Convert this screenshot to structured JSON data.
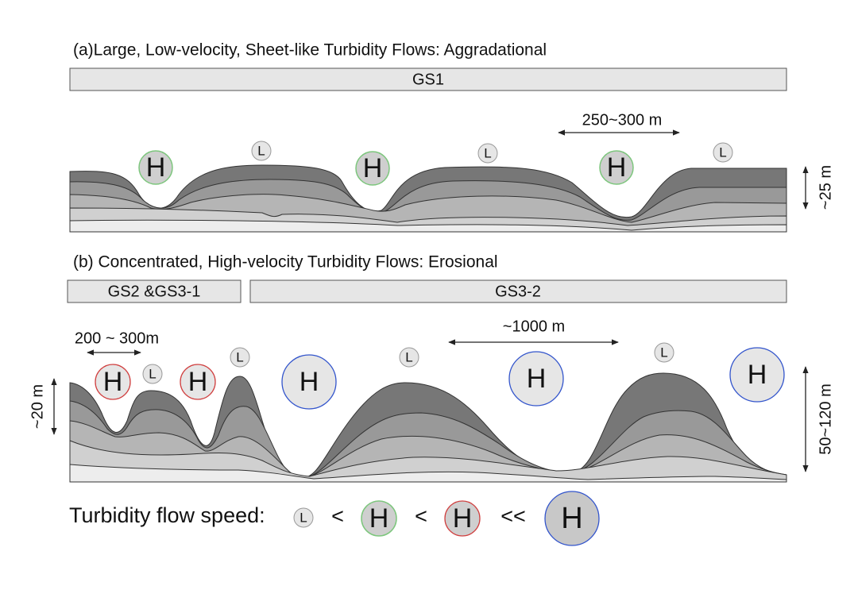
{
  "panel_a": {
    "title": "(a)Large, Low-velocity, Sheet-like Turbidity Flows: Aggradational",
    "sections": [
      "GS1"
    ],
    "scale_width": "250~300 m",
    "scale_height": "~25 m",
    "markers": [
      "H",
      "L",
      "H",
      "L",
      "H",
      "L"
    ]
  },
  "panel_b": {
    "title": "(b)  Concentrated, High-velocity Turbidity Flows: Erosional",
    "sections": [
      "GS2 &GS3-1",
      "GS3-2"
    ],
    "scale_widths": [
      "200 ~ 300m",
      "~1000 m"
    ],
    "scale_heights": [
      "~20 m",
      "50~120 m"
    ],
    "markers": [
      "H",
      "L",
      "H",
      "L",
      "H",
      "L",
      "H",
      "L",
      "H"
    ]
  },
  "legend": {
    "label": "Turbidity flow speed:",
    "items": [
      "L",
      "<",
      "H",
      "<",
      "H",
      "<<",
      "H"
    ]
  }
}
